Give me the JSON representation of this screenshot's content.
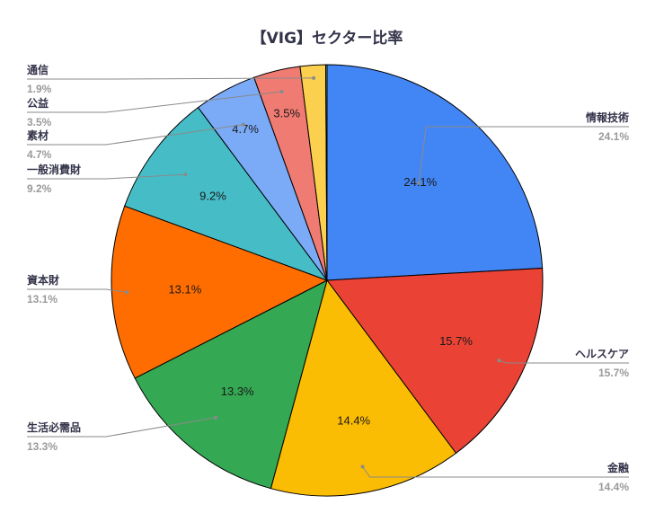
{
  "chart_data": {
    "type": "pie",
    "title": "【VIG】セクター比率",
    "legend": "none",
    "slices": [
      {
        "name": "情報技術",
        "value": 24.1,
        "label": "24.1%",
        "color": "#4285f4"
      },
      {
        "name": "ヘルスケア",
        "value": 15.7,
        "label": "15.7%",
        "color": "#ea4335"
      },
      {
        "name": "金融",
        "value": 14.4,
        "label": "14.4%",
        "color": "#fbbc04"
      },
      {
        "name": "生活必需品",
        "value": 13.3,
        "label": "13.3%",
        "color": "#34a853"
      },
      {
        "name": "資本財",
        "value": 13.1,
        "label": "13.1%",
        "color": "#ff6d01"
      },
      {
        "name": "一般消費財",
        "value": 9.2,
        "label": "9.2%",
        "color": "#46bdc6"
      },
      {
        "name": "素材",
        "value": 4.7,
        "label": "4.7%",
        "color": "#7baaf7"
      },
      {
        "name": "公益",
        "value": 3.5,
        "label": "3.5%",
        "color": "#f07b72"
      },
      {
        "name": "通信",
        "value": 1.9,
        "label": "1.9%",
        "color": "#fcd04f"
      },
      {
        "name": "",
        "value": 0.1,
        "label": "",
        "color": "#71c287"
      }
    ],
    "inner_labels_shown_for": [
      "情報技術",
      "ヘルスケア",
      "金融",
      "生活必需品",
      "資本財",
      "一般消費財",
      "素材",
      "公益"
    ]
  }
}
